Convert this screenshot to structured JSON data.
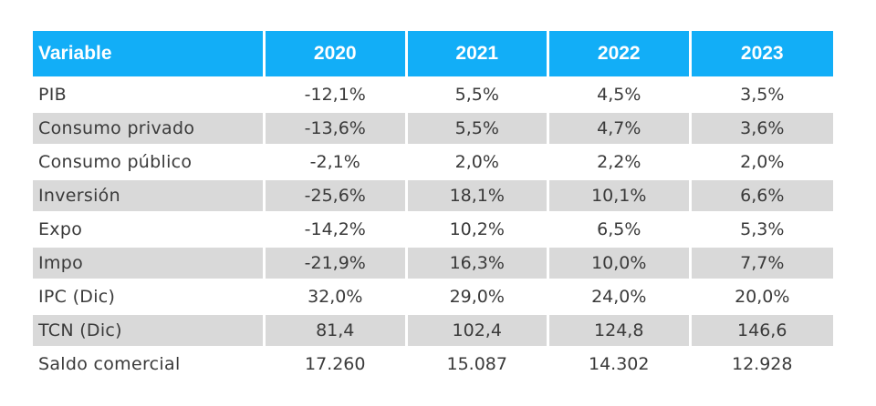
{
  "table": {
    "header": {
      "variable": "Variable",
      "years": [
        "2020",
        "2021",
        "2022",
        "2023"
      ]
    },
    "rows": [
      {
        "label": "PIB",
        "values": [
          "-12,1%",
          "5,5%",
          "4,5%",
          "3,5%"
        ]
      },
      {
        "label": "Consumo privado",
        "values": [
          "-13,6%",
          "5,5%",
          "4,7%",
          "3,6%"
        ]
      },
      {
        "label": "Consumo público",
        "values": [
          "-2,1%",
          "2,0%",
          "2,2%",
          "2,0%"
        ]
      },
      {
        "label": "Inversión",
        "values": [
          "-25,6%",
          "18,1%",
          "10,1%",
          "6,6%"
        ]
      },
      {
        "label": "Expo",
        "values": [
          "-14,2%",
          "10,2%",
          "6,5%",
          "5,3%"
        ]
      },
      {
        "label": "Impo",
        "values": [
          "-21,9%",
          "16,3%",
          "10,0%",
          "7,7%"
        ]
      },
      {
        "label": "IPC (Dic)",
        "values": [
          "32,0%",
          "29,0%",
          "24,0%",
          "20,0%"
        ]
      },
      {
        "label": "TCN (Dic)",
        "values": [
          "81,4",
          "102,4",
          "124,8",
          "146,6"
        ]
      },
      {
        "label": "Saldo comercial",
        "values": [
          "17.260",
          "15.087",
          "14.302",
          "12.928"
        ]
      }
    ],
    "colors": {
      "header_bg": "#12aef7",
      "header_text": "#ffffff",
      "shaded_row": "#d9d9d9",
      "text": "#3a3a3a"
    }
  }
}
